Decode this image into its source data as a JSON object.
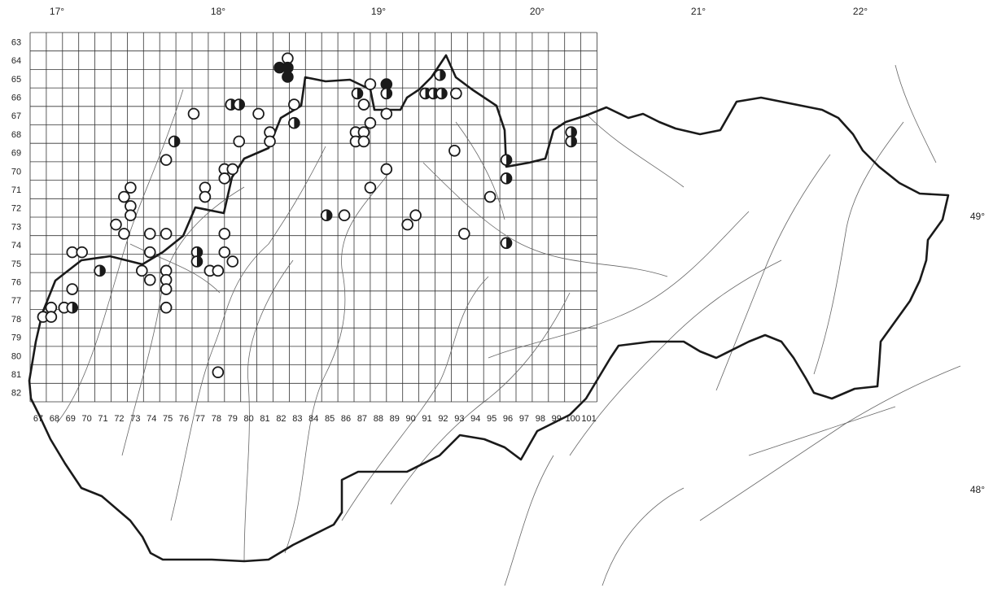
{
  "map": {
    "longitude_labels": [
      "17°",
      "18°",
      "19°",
      "20°",
      "21°",
      "22°"
    ],
    "latitude_labels": [
      "49°",
      "48°"
    ],
    "columns": [
      67,
      68,
      69,
      70,
      71,
      72,
      73,
      74,
      75,
      76,
      77,
      78,
      79,
      80,
      81,
      82,
      83,
      84,
      85,
      86,
      87,
      88,
      89,
      90,
      91,
      92,
      93,
      94,
      95,
      96,
      97,
      98,
      99,
      100,
      101
    ],
    "rows": [
      63,
      64,
      65,
      66,
      67,
      68,
      69,
      70,
      71,
      72,
      73,
      74,
      75,
      76,
      77,
      78,
      79,
      80,
      81,
      82
    ],
    "symbol_types": [
      "open-circle",
      "half-filled-circle",
      "filled-circle"
    ],
    "colors": {
      "ink": "#1a1a1a",
      "grid": "#333333",
      "rivers": "#666666",
      "background": "#ffffff"
    },
    "records": [
      {
        "col": 82.9,
        "row": 64.4,
        "type": "open"
      },
      {
        "col": 82.4,
        "row": 64.9,
        "type": "filled"
      },
      {
        "col": 82.9,
        "row": 64.9,
        "type": "filled"
      },
      {
        "col": 82.9,
        "row": 65.4,
        "type": "filled"
      },
      {
        "col": 92.3,
        "row": 65.3,
        "type": "half"
      },
      {
        "col": 88.0,
        "row": 65.8,
        "type": "open"
      },
      {
        "col": 89.0,
        "row": 65.8,
        "type": "filled"
      },
      {
        "col": 89.0,
        "row": 66.3,
        "type": "half"
      },
      {
        "col": 87.2,
        "row": 66.3,
        "type": "half"
      },
      {
        "col": 91.4,
        "row": 66.3,
        "type": "half"
      },
      {
        "col": 91.9,
        "row": 66.3,
        "type": "half"
      },
      {
        "col": 92.4,
        "row": 66.3,
        "type": "half"
      },
      {
        "col": 93.3,
        "row": 66.3,
        "type": "open"
      },
      {
        "col": 79.4,
        "row": 66.9,
        "type": "half"
      },
      {
        "col": 79.9,
        "row": 66.9,
        "type": "half"
      },
      {
        "col": 83.3,
        "row": 66.9,
        "type": "open"
      },
      {
        "col": 87.6,
        "row": 66.9,
        "type": "open"
      },
      {
        "col": 77.1,
        "row": 67.4,
        "type": "open"
      },
      {
        "col": 81.1,
        "row": 67.4,
        "type": "open"
      },
      {
        "col": 89.0,
        "row": 67.4,
        "type": "open"
      },
      {
        "col": 83.3,
        "row": 67.9,
        "type": "half"
      },
      {
        "col": 88.0,
        "row": 67.9,
        "type": "open"
      },
      {
        "col": 81.8,
        "row": 68.4,
        "type": "open"
      },
      {
        "col": 87.1,
        "row": 68.4,
        "type": "open"
      },
      {
        "col": 87.6,
        "row": 68.4,
        "type": "open"
      },
      {
        "col": 100.4,
        "row": 68.4,
        "type": "half"
      },
      {
        "col": 75.9,
        "row": 68.9,
        "type": "half"
      },
      {
        "col": 79.9,
        "row": 68.9,
        "type": "open"
      },
      {
        "col": 81.8,
        "row": 68.9,
        "type": "open"
      },
      {
        "col": 87.1,
        "row": 68.9,
        "type": "open"
      },
      {
        "col": 87.6,
        "row": 68.9,
        "type": "open"
      },
      {
        "col": 100.4,
        "row": 68.9,
        "type": "half"
      },
      {
        "col": 93.2,
        "row": 69.4,
        "type": "open"
      },
      {
        "col": 75.4,
        "row": 69.9,
        "type": "open"
      },
      {
        "col": 96.4,
        "row": 69.9,
        "type": "half"
      },
      {
        "col": 79.0,
        "row": 70.4,
        "type": "open"
      },
      {
        "col": 79.5,
        "row": 70.4,
        "type": "open"
      },
      {
        "col": 89.0,
        "row": 70.4,
        "type": "open"
      },
      {
        "col": 79.0,
        "row": 70.9,
        "type": "open"
      },
      {
        "col": 96.4,
        "row": 70.9,
        "type": "half"
      },
      {
        "col": 73.2,
        "row": 71.4,
        "type": "open"
      },
      {
        "col": 77.8,
        "row": 71.4,
        "type": "open"
      },
      {
        "col": 88.0,
        "row": 71.4,
        "type": "open"
      },
      {
        "col": 72.8,
        "row": 71.9,
        "type": "open"
      },
      {
        "col": 77.8,
        "row": 71.9,
        "type": "open"
      },
      {
        "col": 95.4,
        "row": 71.9,
        "type": "open"
      },
      {
        "col": 73.2,
        "row": 72.4,
        "type": "open"
      },
      {
        "col": 73.2,
        "row": 72.9,
        "type": "open"
      },
      {
        "col": 85.3,
        "row": 72.9,
        "type": "half"
      },
      {
        "col": 86.4,
        "row": 72.9,
        "type": "open"
      },
      {
        "col": 90.8,
        "row": 72.9,
        "type": "open"
      },
      {
        "col": 72.3,
        "row": 73.4,
        "type": "open"
      },
      {
        "col": 90.3,
        "row": 73.4,
        "type": "open"
      },
      {
        "col": 72.8,
        "row": 73.9,
        "type": "open"
      },
      {
        "col": 74.4,
        "row": 73.9,
        "type": "open"
      },
      {
        "col": 75.4,
        "row": 73.9,
        "type": "open"
      },
      {
        "col": 79.0,
        "row": 73.9,
        "type": "open"
      },
      {
        "col": 93.8,
        "row": 73.9,
        "type": "open"
      },
      {
        "col": 96.4,
        "row": 74.4,
        "type": "half"
      },
      {
        "col": 69.6,
        "row": 74.9,
        "type": "open"
      },
      {
        "col": 70.2,
        "row": 74.9,
        "type": "open"
      },
      {
        "col": 74.4,
        "row": 74.9,
        "type": "open"
      },
      {
        "col": 77.3,
        "row": 74.9,
        "type": "half"
      },
      {
        "col": 79.0,
        "row": 74.9,
        "type": "open"
      },
      {
        "col": 77.3,
        "row": 75.4,
        "type": "half"
      },
      {
        "col": 79.5,
        "row": 75.4,
        "type": "open"
      },
      {
        "col": 71.3,
        "row": 75.9,
        "type": "half"
      },
      {
        "col": 73.9,
        "row": 75.9,
        "type": "open"
      },
      {
        "col": 75.4,
        "row": 75.9,
        "type": "open"
      },
      {
        "col": 78.1,
        "row": 75.9,
        "type": "open"
      },
      {
        "col": 78.6,
        "row": 75.9,
        "type": "open"
      },
      {
        "col": 74.4,
        "row": 76.4,
        "type": "open"
      },
      {
        "col": 75.4,
        "row": 76.4,
        "type": "open"
      },
      {
        "col": 69.6,
        "row": 76.9,
        "type": "open"
      },
      {
        "col": 75.4,
        "row": 76.9,
        "type": "open"
      },
      {
        "col": 68.3,
        "row": 77.9,
        "type": "open"
      },
      {
        "col": 69.1,
        "row": 77.9,
        "type": "open"
      },
      {
        "col": 69.6,
        "row": 77.9,
        "type": "half"
      },
      {
        "col": 75.4,
        "row": 77.9,
        "type": "open"
      },
      {
        "col": 67.8,
        "row": 78.4,
        "type": "open"
      },
      {
        "col": 68.3,
        "row": 78.4,
        "type": "open"
      },
      {
        "col": 78.6,
        "row": 81.4,
        "type": "open"
      }
    ]
  }
}
